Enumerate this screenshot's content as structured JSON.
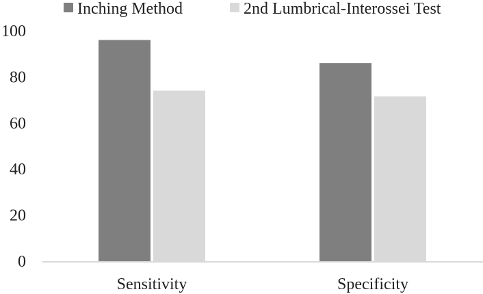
{
  "chart_data": {
    "type": "bar",
    "title": "",
    "xlabel": "",
    "ylabel": "",
    "categories": [
      "Sensitivity",
      "Specificity"
    ],
    "series": [
      {
        "name": "Inching Method",
        "values": [
          96,
          86
        ],
        "color": "#7f7f7f"
      },
      {
        "name": "2nd Lumbrical-Interossei Test",
        "values": [
          74,
          71.5
        ],
        "color": "#d9d9d9"
      }
    ],
    "ylim": [
      0,
      100
    ],
    "yticks": [
      0,
      20,
      40,
      60,
      80,
      100
    ],
    "grid": false,
    "legend_position": "top",
    "axis_color": "#d9d9d9"
  }
}
